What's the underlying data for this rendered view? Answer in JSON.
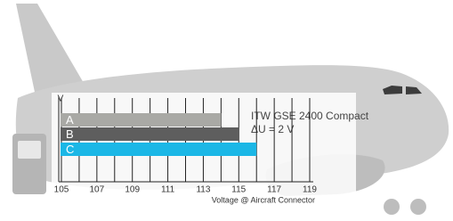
{
  "chart_data": {
    "type": "bar",
    "orientation": "horizontal",
    "categories": [
      "A",
      "B",
      "C"
    ],
    "values": [
      114,
      115,
      116
    ],
    "colors": [
      "#a9a9a5",
      "#5e5e5e",
      "#1bb7e6"
    ],
    "xlabel": "Voltage @ Aircraft Connector",
    "ylabel": "V",
    "annotations": [
      "ITW GSE 2400 Compact",
      "ΔU = 2 V"
    ],
    "xlim": [
      105,
      119
    ],
    "xticks": [
      105,
      107,
      109,
      111,
      113,
      115,
      117,
      119
    ],
    "xminorticks": [
      106,
      108,
      110,
      112,
      114,
      116,
      118
    ],
    "grid": true
  }
}
